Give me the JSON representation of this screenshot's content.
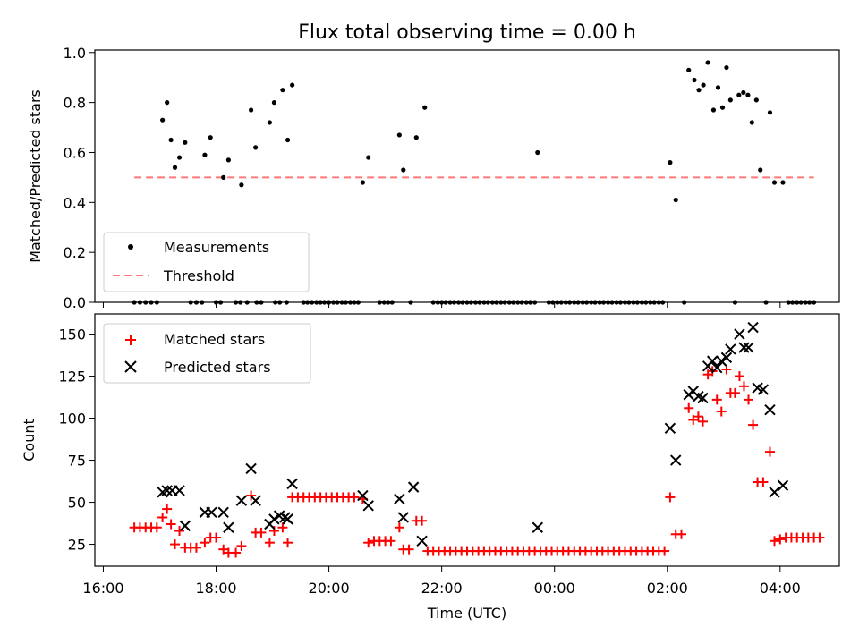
{
  "chart_data": {
    "type": "scatter",
    "title": "Flux total observing time = 0.00 h",
    "x_ticks": [
      "16:00",
      "18:00",
      "20:00",
      "22:00",
      "00:00",
      "02:00",
      "04:00"
    ],
    "x_tick_hours": [
      0,
      2,
      4,
      6,
      8,
      10,
      12
    ],
    "xlabel": "Time (UTC)",
    "xlim_hours_after_1600": [
      -0.15,
      13.05
    ],
    "panels": [
      {
        "ylabel": "Matched/Predicted stars",
        "ylim": [
          0,
          1.01
        ],
        "y_ticks": [
          "0.0",
          "0.2",
          "0.4",
          "0.6",
          "0.8",
          "1.0"
        ],
        "y_tick_values": [
          0,
          0.2,
          0.4,
          0.6,
          0.8,
          1.0
        ],
        "legend": {
          "position": "lower-left",
          "entries": [
            "Measurements",
            "Threshold"
          ]
        },
        "threshold": {
          "value": 0.5,
          "x": [
            0.55,
            12.6
          ],
          "color": "#ff7777"
        },
        "measurements": {
          "color": "#000000",
          "points": [
            [
              1.05,
              0.73
            ],
            [
              1.13,
              0.8
            ],
            [
              1.2,
              0.65
            ],
            [
              1.27,
              0.54
            ],
            [
              1.35,
              0.58
            ],
            [
              1.45,
              0.64
            ],
            [
              1.8,
              0.59
            ],
            [
              1.9,
              0.66
            ],
            [
              2.13,
              0.5
            ],
            [
              2.22,
              0.57
            ],
            [
              2.45,
              0.47
            ],
            [
              2.62,
              0.77
            ],
            [
              2.7,
              0.62
            ],
            [
              2.95,
              0.72
            ],
            [
              3.03,
              0.8
            ],
            [
              3.18,
              0.85
            ],
            [
              3.27,
              0.65
            ],
            [
              3.35,
              0.87
            ],
            [
              4.6,
              0.48
            ],
            [
              4.7,
              0.58
            ],
            [
              5.25,
              0.67
            ],
            [
              5.32,
              0.53
            ],
            [
              5.55,
              0.66
            ],
            [
              5.7,
              0.78
            ],
            [
              7.7,
              0.6
            ],
            [
              10.05,
              0.56
            ],
            [
              10.15,
              0.41
            ],
            [
              10.38,
              0.93
            ],
            [
              10.48,
              0.89
            ],
            [
              10.56,
              0.85
            ],
            [
              10.64,
              0.87
            ],
            [
              10.72,
              0.96
            ],
            [
              10.82,
              0.77
            ],
            [
              10.9,
              0.86
            ],
            [
              10.98,
              0.78
            ],
            [
              11.05,
              0.94
            ],
            [
              11.12,
              0.81
            ],
            [
              11.27,
              0.83
            ],
            [
              11.35,
              0.84
            ],
            [
              11.43,
              0.83
            ],
            [
              11.5,
              0.72
            ],
            [
              11.58,
              0.81
            ],
            [
              11.65,
              0.53
            ],
            [
              11.82,
              0.76
            ],
            [
              11.9,
              0.48
            ],
            [
              12.05,
              0.48
            ]
          ],
          "zeros": [
            0.55,
            0.65,
            0.75,
            0.85,
            0.95,
            1.55,
            1.65,
            1.75,
            2.0,
            2.08,
            2.35,
            2.43,
            2.55,
            2.72,
            2.8,
            3.05,
            3.13,
            3.25,
            3.55,
            3.62,
            3.7,
            3.78,
            3.85,
            3.92,
            4.0,
            4.08,
            4.15,
            4.23,
            4.3,
            4.38,
            4.45,
            4.52,
            4.9,
            4.98,
            5.05,
            5.12,
            5.45,
            5.85,
            5.93,
            6.0,
            6.07,
            6.15,
            6.22,
            6.3,
            6.37,
            6.45,
            6.52,
            6.6,
            6.67,
            6.75,
            6.82,
            6.9,
            6.97,
            7.05,
            7.12,
            7.2,
            7.27,
            7.35,
            7.42,
            7.5,
            7.57,
            7.65,
            7.9,
            7.97,
            8.05,
            8.12,
            8.2,
            8.27,
            8.35,
            8.42,
            8.5,
            8.57,
            8.65,
            8.72,
            8.8,
            8.87,
            8.95,
            9.02,
            9.1,
            9.17,
            9.25,
            9.32,
            9.4,
            9.47,
            9.55,
            9.62,
            9.7,
            9.77,
            9.85,
            9.92,
            10.3,
            11.2,
            11.75,
            12.15,
            12.22,
            12.3,
            12.37,
            12.45,
            12.52,
            12.6
          ]
        }
      },
      {
        "ylabel": "Count",
        "ylim": [
          12,
          162
        ],
        "y_ticks": [
          "25",
          "50",
          "75",
          "100",
          "125",
          "150"
        ],
        "y_tick_values": [
          25,
          50,
          75,
          100,
          125,
          150
        ],
        "legend": {
          "position": "upper-left",
          "entries": [
            "Matched stars",
            "Predicted stars"
          ]
        },
        "series": [
          {
            "name": "Matched stars",
            "marker": "plus",
            "color": "#ff0000",
            "points": [
              [
                0.55,
                35
              ],
              [
                0.65,
                35
              ],
              [
                0.75,
                35
              ],
              [
                0.85,
                35
              ],
              [
                0.95,
                35
              ],
              [
                1.05,
                41
              ],
              [
                1.13,
                46
              ],
              [
                1.2,
                37
              ],
              [
                1.27,
                25
              ],
              [
                1.35,
                33
              ],
              [
                1.45,
                23
              ],
              [
                1.55,
                23
              ],
              [
                1.65,
                23
              ],
              [
                1.8,
                26
              ],
              [
                1.9,
                29
              ],
              [
                2.0,
                29
              ],
              [
                2.13,
                22
              ],
              [
                2.22,
                20
              ],
              [
                2.35,
                20
              ],
              [
                2.45,
                24
              ],
              [
                2.62,
                54
              ],
              [
                2.7,
                32
              ],
              [
                2.8,
                32
              ],
              [
                2.95,
                26
              ],
              [
                3.03,
                33
              ],
              [
                3.18,
                35
              ],
              [
                3.27,
                26
              ],
              [
                3.35,
                53
              ],
              [
                3.45,
                53
              ],
              [
                3.55,
                53
              ],
              [
                3.65,
                53
              ],
              [
                3.75,
                53
              ],
              [
                3.85,
                53
              ],
              [
                3.95,
                53
              ],
              [
                4.05,
                53
              ],
              [
                4.15,
                53
              ],
              [
                4.25,
                53
              ],
              [
                4.35,
                53
              ],
              [
                4.45,
                53
              ],
              [
                4.6,
                52
              ],
              [
                4.7,
                26
              ],
              [
                4.8,
                27
              ],
              [
                4.9,
                27
              ],
              [
                5.0,
                27
              ],
              [
                5.1,
                27
              ],
              [
                5.25,
                35
              ],
              [
                5.32,
                22
              ],
              [
                5.42,
                22
              ],
              [
                5.55,
                39
              ],
              [
                5.65,
                39
              ],
              [
                5.75,
                21
              ],
              [
                5.85,
                21
              ],
              [
                5.95,
                21
              ],
              [
                6.05,
                21
              ],
              [
                6.15,
                21
              ],
              [
                6.25,
                21
              ],
              [
                6.35,
                21
              ],
              [
                6.45,
                21
              ],
              [
                6.55,
                21
              ],
              [
                6.65,
                21
              ],
              [
                6.75,
                21
              ],
              [
                6.85,
                21
              ],
              [
                6.95,
                21
              ],
              [
                7.05,
                21
              ],
              [
                7.15,
                21
              ],
              [
                7.25,
                21
              ],
              [
                7.35,
                21
              ],
              [
                7.45,
                21
              ],
              [
                7.55,
                21
              ],
              [
                7.65,
                21
              ],
              [
                7.75,
                21
              ],
              [
                7.85,
                21
              ],
              [
                7.95,
                21
              ],
              [
                8.05,
                21
              ],
              [
                8.15,
                21
              ],
              [
                8.25,
                21
              ],
              [
                8.35,
                21
              ],
              [
                8.45,
                21
              ],
              [
                8.55,
                21
              ],
              [
                8.65,
                21
              ],
              [
                8.75,
                21
              ],
              [
                8.85,
                21
              ],
              [
                8.95,
                21
              ],
              [
                9.05,
                21
              ],
              [
                9.15,
                21
              ],
              [
                9.25,
                21
              ],
              [
                9.35,
                21
              ],
              [
                9.45,
                21
              ],
              [
                9.55,
                21
              ],
              [
                9.65,
                21
              ],
              [
                9.75,
                21
              ],
              [
                9.85,
                21
              ],
              [
                9.95,
                21
              ],
              [
                10.05,
                53
              ],
              [
                10.15,
                31
              ],
              [
                10.25,
                31
              ],
              [
                10.38,
                106
              ],
              [
                10.46,
                99
              ],
              [
                10.55,
                101
              ],
              [
                10.63,
                98
              ],
              [
                10.72,
                126
              ],
              [
                10.8,
                128
              ],
              [
                10.88,
                111
              ],
              [
                10.96,
                104
              ],
              [
                11.05,
                129
              ],
              [
                11.12,
                115
              ],
              [
                11.2,
                115
              ],
              [
                11.28,
                125
              ],
              [
                11.36,
                119
              ],
              [
                11.44,
                111
              ],
              [
                11.52,
                96
              ],
              [
                11.6,
                62
              ],
              [
                11.7,
                62
              ],
              [
                11.82,
                80
              ],
              [
                11.9,
                27
              ],
              [
                12.0,
                28
              ],
              [
                12.1,
                29
              ],
              [
                12.2,
                29
              ],
              [
                12.3,
                29
              ],
              [
                12.4,
                29
              ],
              [
                12.5,
                29
              ],
              [
                12.6,
                29
              ],
              [
                12.7,
                29
              ]
            ]
          },
          {
            "name": "Predicted stars",
            "marker": "x",
            "color": "#000000",
            "points": [
              [
                1.05,
                56
              ],
              [
                1.13,
                57
              ],
              [
                1.22,
                57
              ],
              [
                1.35,
                57
              ],
              [
                1.45,
                36
              ],
              [
                1.8,
                44
              ],
              [
                1.92,
                44
              ],
              [
                2.13,
                44
              ],
              [
                2.22,
                35
              ],
              [
                2.45,
                51
              ],
              [
                2.62,
                70
              ],
              [
                2.7,
                51
              ],
              [
                2.95,
                37
              ],
              [
                3.03,
                40
              ],
              [
                3.12,
                42
              ],
              [
                3.22,
                41
              ],
              [
                3.27,
                40
              ],
              [
                3.35,
                61
              ],
              [
                4.6,
                54
              ],
              [
                4.7,
                48
              ],
              [
                5.25,
                52
              ],
              [
                5.32,
                41
              ],
              [
                5.5,
                59
              ],
              [
                5.65,
                27
              ],
              [
                7.7,
                35
              ],
              [
                10.05,
                94
              ],
              [
                10.15,
                75
              ],
              [
                10.38,
                114
              ],
              [
                10.46,
                116
              ],
              [
                10.55,
                113
              ],
              [
                10.63,
                112
              ],
              [
                10.72,
                131
              ],
              [
                10.8,
                134
              ],
              [
                10.88,
                130
              ],
              [
                10.96,
                134
              ],
              [
                11.05,
                136
              ],
              [
                11.12,
                141
              ],
              [
                11.28,
                150
              ],
              [
                11.36,
                142
              ],
              [
                11.44,
                142
              ],
              [
                11.52,
                154
              ],
              [
                11.6,
                118
              ],
              [
                11.7,
                117
              ],
              [
                11.82,
                105
              ],
              [
                11.9,
                56
              ],
              [
                12.05,
                60
              ]
            ]
          }
        ]
      }
    ]
  }
}
